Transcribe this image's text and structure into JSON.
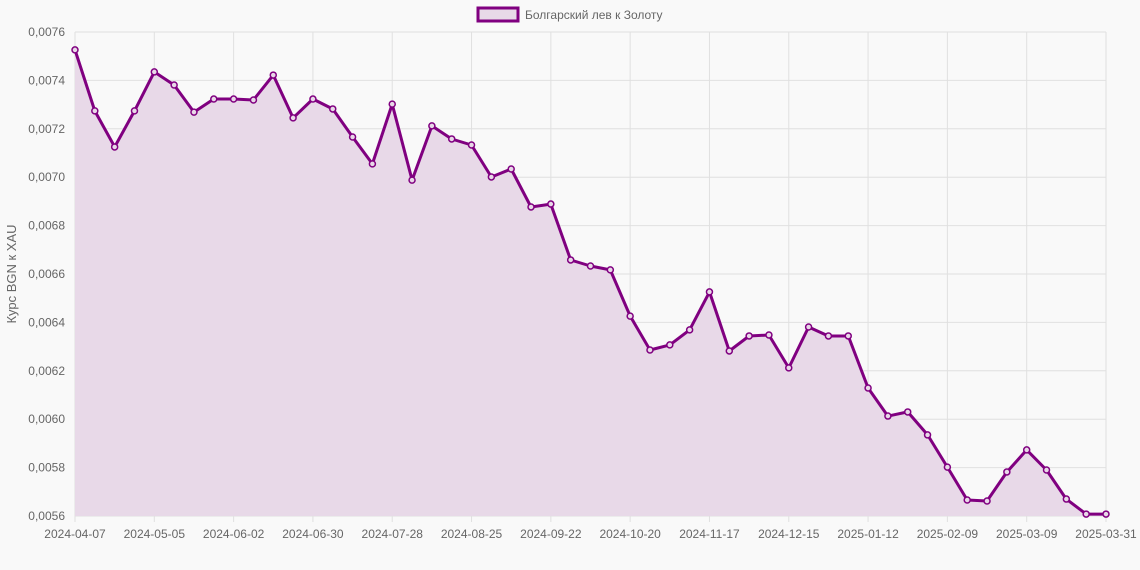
{
  "chart_data": {
    "type": "area",
    "title": "",
    "xlabel": "",
    "ylabel": "Курс BGN к XAU",
    "legend_position": "top",
    "grid": true,
    "ylim": [
      0.0056,
      0.0076
    ],
    "y_ticks": [
      "0,0056",
      "0,0058",
      "0,0060",
      "0,0062",
      "0,0064",
      "0,0066",
      "0,0068",
      "0,0070",
      "0,0072",
      "0,0074",
      "0,0076"
    ],
    "x_tick_labels": [
      "2024-04-07",
      "2024-05-05",
      "2024-06-02",
      "2024-06-30",
      "2024-07-28",
      "2024-08-25",
      "2024-09-22",
      "2024-10-20",
      "2024-11-17",
      "2024-12-15",
      "2025-01-12",
      "2025-02-09",
      "2025-03-09",
      "2025-03-31"
    ],
    "x": [
      "2024-04-07",
      "2024-04-14",
      "2024-04-21",
      "2024-04-28",
      "2024-05-05",
      "2024-05-12",
      "2024-05-19",
      "2024-05-26",
      "2024-06-02",
      "2024-06-09",
      "2024-06-16",
      "2024-06-23",
      "2024-06-30",
      "2024-07-07",
      "2024-07-14",
      "2024-07-21",
      "2024-07-28",
      "2024-08-04",
      "2024-08-11",
      "2024-08-18",
      "2024-08-25",
      "2024-09-01",
      "2024-09-08",
      "2024-09-15",
      "2024-09-22",
      "2024-09-29",
      "2024-10-06",
      "2024-10-13",
      "2024-10-20",
      "2024-10-27",
      "2024-11-03",
      "2024-11-10",
      "2024-11-17",
      "2024-11-24",
      "2024-12-01",
      "2024-12-08",
      "2024-12-15",
      "2024-12-22",
      "2024-12-29",
      "2025-01-05",
      "2025-01-12",
      "2025-01-19",
      "2025-01-26",
      "2025-02-02",
      "2025-02-09",
      "2025-02-16",
      "2025-02-23",
      "2025-03-02",
      "2025-03-09",
      "2025-03-16",
      "2025-03-23",
      "2025-03-30",
      "2025-03-31"
    ],
    "series": [
      {
        "name": "Болгарский лев к Золоту",
        "color": "#800080",
        "fill": "#e8d9e8",
        "values": [
          0.007526,
          0.007274,
          0.007125,
          0.007274,
          0.007435,
          0.007381,
          0.007269,
          0.007323,
          0.007323,
          0.007319,
          0.007422,
          0.007245,
          0.007323,
          0.007282,
          0.007166,
          0.007055,
          0.007302,
          0.006988,
          0.007212,
          0.007158,
          0.007133,
          0.007001,
          0.007034,
          0.006877,
          0.006889,
          0.006658,
          0.006633,
          0.006617,
          0.006426,
          0.006286,
          0.006307,
          0.006369,
          0.006526,
          0.006282,
          0.006344,
          0.006348,
          0.006212,
          0.006381,
          0.006344,
          0.006344,
          0.006129,
          0.006013,
          0.00603,
          0.005935,
          0.005802,
          0.005666,
          0.005662,
          0.005782,
          0.005873,
          0.00579,
          0.00567,
          0.005608,
          0.005608
        ]
      }
    ]
  }
}
